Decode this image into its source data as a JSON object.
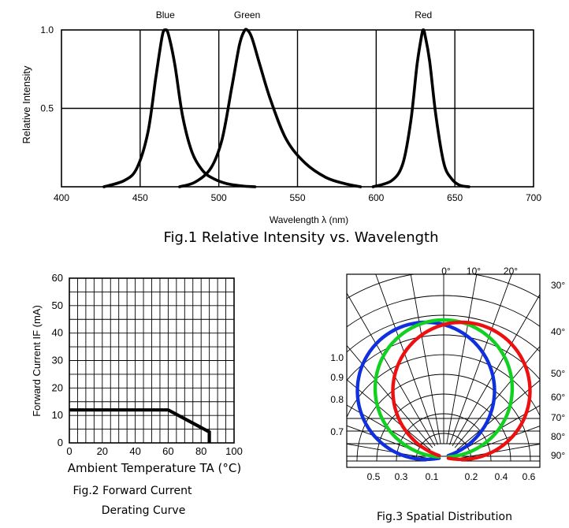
{
  "chart_data": [
    {
      "type": "line",
      "title": "Fig.1 Relative Intensity vs. Wavelength",
      "xlabel": "Wavelength λ (nm)",
      "ylabel": "Relative Intensity",
      "xlim": [
        400,
        700
      ],
      "ylim": [
        0,
        1.0
      ],
      "xticks": [
        400,
        450,
        500,
        550,
        600,
        650,
        700
      ],
      "yticks": [
        {
          "v": 1.0,
          "label": "1.0"
        },
        {
          "v": 0.5,
          "label": "0.5"
        }
      ],
      "grid": true,
      "series": [
        {
          "name": "Blue",
          "color": "#000000",
          "x": [
            427,
            440,
            448,
            455,
            460,
            464,
            466,
            468,
            472,
            477,
            483,
            490,
            497,
            505,
            515,
            523
          ],
          "y": [
            0.0,
            0.04,
            0.12,
            0.35,
            0.7,
            0.96,
            1.0,
            0.97,
            0.78,
            0.45,
            0.22,
            0.1,
            0.05,
            0.02,
            0.005,
            0.0
          ]
        },
        {
          "name": "Green",
          "color": "#000000",
          "x": [
            475,
            485,
            495,
            502,
            508,
            513,
            516,
            518,
            521,
            526,
            533,
            543,
            555,
            568,
            580,
            590
          ],
          "y": [
            0.0,
            0.03,
            0.12,
            0.3,
            0.62,
            0.9,
            0.99,
            1.0,
            0.95,
            0.78,
            0.55,
            0.3,
            0.15,
            0.06,
            0.02,
            0.0
          ]
        },
        {
          "name": "Red",
          "color": "#000000",
          "x": [
            598,
            610,
            617,
            622,
            626,
            629,
            630,
            631,
            634,
            638,
            643,
            648,
            653,
            659
          ],
          "y": [
            0.0,
            0.04,
            0.15,
            0.42,
            0.78,
            0.97,
            1.0,
            0.97,
            0.8,
            0.45,
            0.15,
            0.05,
            0.01,
            0.0
          ]
        }
      ],
      "peak_labels": [
        {
          "text": "Blue",
          "x": 466
        },
        {
          "text": "Green",
          "x": 518
        },
        {
          "text": "Red",
          "x": 630
        }
      ]
    },
    {
      "type": "line",
      "title_lines": [
        "Fig.2 Forward Current",
        "Derating Curve"
      ],
      "xlabel": "Ambient Temperature TA (°C)",
      "ylabel": "Forward Current IF (mA)",
      "xlim": [
        0,
        100
      ],
      "ylim": [
        0,
        60
      ],
      "xticks": [
        0,
        20,
        40,
        60,
        80,
        100
      ],
      "yticks": [
        0,
        10,
        20,
        30,
        40,
        50,
        60
      ],
      "grid": true,
      "series": [
        {
          "name": "Derating",
          "x": [
            0,
            60,
            85,
            85
          ],
          "y": [
            12,
            12,
            4,
            0
          ]
        }
      ]
    },
    {
      "type": "polar",
      "title": "Fig.3 Spatial Distribution",
      "angle_labels": [
        "0°",
        "10°",
        "20°",
        "30°",
        "40°",
        "50°",
        "60°",
        "70°",
        "80°",
        "90°"
      ],
      "left_scale_labels": [
        "1.0",
        "0.9",
        "0.8",
        "0.7"
      ],
      "bottom_scale_labels": [
        "0.5",
        "0.3",
        "0.1",
        "0.2",
        "0.4",
        "0.6"
      ],
      "series": [
        {
          "name": "Blue",
          "color": "#1030e0",
          "shift_deg": -15
        },
        {
          "name": "Green",
          "color": "#10d020",
          "shift_deg": 0
        },
        {
          "name": "Red",
          "color": "#ee1010",
          "shift_deg": 15
        }
      ]
    }
  ]
}
